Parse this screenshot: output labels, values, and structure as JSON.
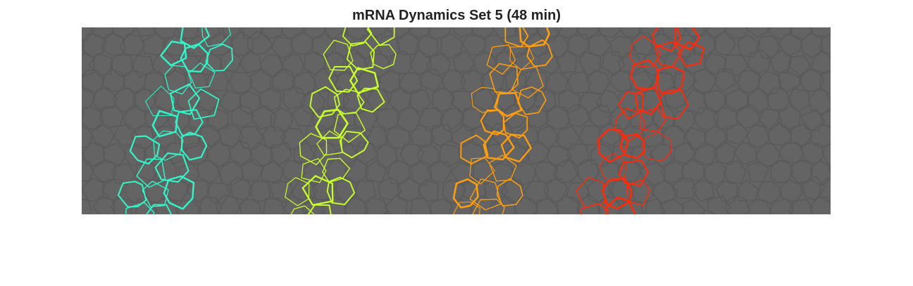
{
  "figure": {
    "title": "mRNA Dynamics Set 5 (48 min)"
  },
  "image": {
    "background_color": "#646464",
    "membrane_color": "#5a5a5a",
    "stripes": [
      {
        "color": "#33f5c8"
      },
      {
        "color": "#c8ff2a"
      },
      {
        "color": "#ff9e0f"
      },
      {
        "color": "#ff2a0a"
      }
    ]
  }
}
